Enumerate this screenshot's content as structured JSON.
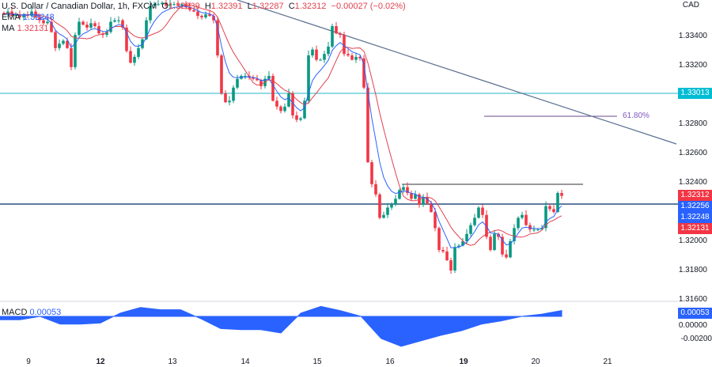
{
  "header": {
    "symbol": "U.S. Dollar / Canadian Dollar, 1h, FXCM",
    "o_label": "O",
    "open": "1.32339",
    "h_label": "H",
    "high": "1.32391",
    "l_label": "L",
    "low": "1.32287",
    "c_label": "C",
    "close": "1.32312",
    "change": "−0.00027 (−0.02%)",
    "ema_label": "EMA",
    "ema_value": "1.32248",
    "ma_label": "MA",
    "ma_value": "1.32131"
  },
  "price_axis": {
    "currency": "CAD",
    "ticks": [
      "1.33400",
      "1.33200",
      "1.32800",
      "1.32600",
      "1.32400",
      "1.32000",
      "1.31800",
      "1.31600"
    ],
    "tags": [
      {
        "text": "1.33013",
        "color": "#00bcd4"
      },
      {
        "text": "1.32312",
        "color": "#f23645"
      },
      {
        "text": "1.32256",
        "color": "#2962ff"
      },
      {
        "text": "1.32248",
        "color": "#2962ff"
      },
      {
        "text": "1.32131",
        "color": "#f23645"
      }
    ]
  },
  "macd": {
    "label": "MACD",
    "value": "0.00053",
    "ticks": [
      "0.00000",
      "-0.00200"
    ],
    "values": [
      -0.0003,
      -0.0003,
      0,
      -0.0007,
      -0.0007,
      -0.0006,
      0.0003,
      0.0008,
      0.0006,
      0.0006,
      -0.0002,
      -0.0011,
      -0.0012,
      -0.0012,
      -0.0015,
      0.0003,
      0.0009,
      0.0005,
      0,
      -0.002,
      -0.0027,
      -0.0022,
      -0.0017,
      -0.0013,
      -0.0007,
      -0.0004,
      0,
      0.0002,
      0.00053
    ]
  },
  "dates": [
    {
      "text": "9",
      "bold": false
    },
    {
      "text": "12",
      "bold": true
    },
    {
      "text": "13",
      "bold": false
    },
    {
      "text": "14",
      "bold": false
    },
    {
      "text": "15",
      "bold": false
    },
    {
      "text": "16",
      "bold": false
    },
    {
      "text": "19",
      "bold": true
    },
    {
      "text": "20",
      "bold": false
    },
    {
      "text": "21",
      "bold": false
    }
  ],
  "drawings": {
    "fib_label": "61.80%",
    "support_level": 1.33013,
    "current_level": 1.32256,
    "resistance_level": 1.3239
  },
  "colors": {
    "up": "#089981",
    "down": "#f23645",
    "ema": "#2962ff",
    "ma": "#e0424f",
    "macd": "#2962ff"
  },
  "chart_data": {
    "type": "candlestick",
    "closes": [
      1.3355,
      1.3357,
      1.3354,
      1.3355,
      1.3353,
      1.3355,
      1.3354,
      1.3357,
      1.3353,
      1.3351,
      1.3349,
      1.335,
      1.3343,
      1.3332,
      1.3335,
      1.3337,
      1.3332,
      1.3319,
      1.3341,
      1.335,
      1.3348,
      1.3346,
      1.3349,
      1.3347,
      1.3342,
      1.3341,
      1.3343,
      1.335,
      1.3351,
      1.3351,
      1.3346,
      1.333,
      1.3322,
      1.3326,
      1.3332,
      1.3338,
      1.3351,
      1.3361,
      1.3362,
      1.3362,
      1.3363,
      1.3361,
      1.3362,
      1.3362,
      1.3361,
      1.3362,
      1.336,
      1.3358,
      1.3357,
      1.3354,
      1.3353,
      1.3355,
      1.3354,
      1.3351,
      1.3327,
      1.3301,
      1.3295,
      1.3296,
      1.3305,
      1.3311,
      1.3313,
      1.3313,
      1.3312,
      1.3311,
      1.331,
      1.3306,
      1.3311,
      1.3313,
      1.3296,
      1.3292,
      1.3289,
      1.3292,
      1.3301,
      1.3286,
      1.3283,
      1.3284,
      1.3296,
      1.3327,
      1.3331,
      1.3324,
      1.3324,
      1.3328,
      1.3333,
      1.3347,
      1.3342,
      1.3341,
      1.3328,
      1.3327,
      1.3324,
      1.3326,
      1.3325,
      1.3305,
      1.3254,
      1.3239,
      1.3232,
      1.3216,
      1.3218,
      1.3223,
      1.3225,
      1.3229,
      1.3235,
      1.3237,
      1.3233,
      1.3229,
      1.3232,
      1.3225,
      1.323,
      1.3226,
      1.322,
      1.3209,
      1.3194,
      1.3193,
      1.3187,
      1.318,
      1.3196,
      1.3197,
      1.32,
      1.3205,
      1.3211,
      1.3216,
      1.3223,
      1.3218,
      1.3203,
      1.3194,
      1.3205,
      1.3203,
      1.3191,
      1.3189,
      1.32,
      1.3209,
      1.3216,
      1.3218,
      1.3211,
      1.3208,
      1.3208,
      1.3208,
      1.3209,
      1.3224,
      1.3222,
      1.322,
      1.3233,
      1.3231
    ]
  }
}
